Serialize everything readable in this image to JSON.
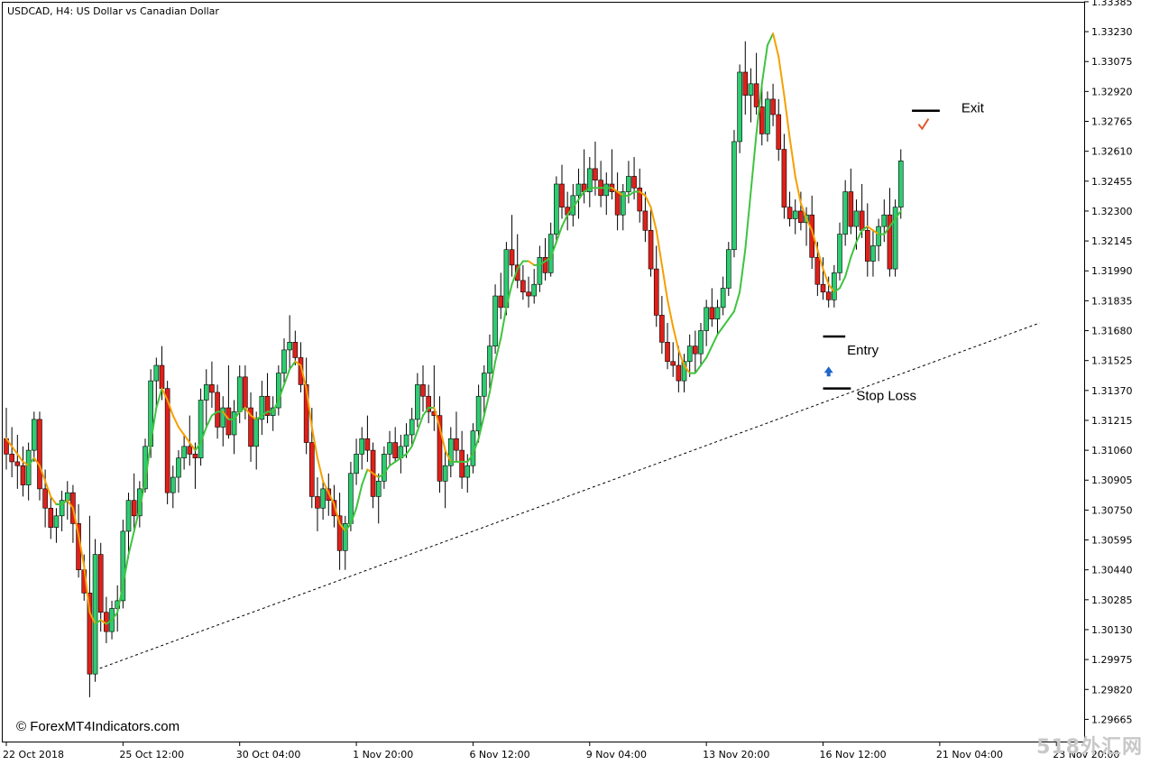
{
  "chart_data": {
    "type": "candlestick",
    "title": "USDCAD, H4:  US Dollar vs Canadian Dollar",
    "watermark_credit": "© ForexMT4Indicators.com",
    "corner_watermark": "518外汇网",
    "grid": false,
    "colors": {
      "bull": "#2ecc71",
      "bear": "#e0201a",
      "line_up": "#3ec43e",
      "line_down": "#f5a000",
      "text": "#000000",
      "trendline": "#000000"
    },
    "y_axis": {
      "ylim": [
        1.2955,
        1.3338
      ],
      "tick_labels": [
        "1.33385",
        "1.33230",
        "1.33075",
        "1.32920",
        "1.32765",
        "1.32610",
        "1.32455",
        "1.32300",
        "1.32145",
        "1.31990",
        "1.31835",
        "1.31680",
        "1.31525",
        "1.31370",
        "1.31215",
        "1.31060",
        "1.30905",
        "1.30750",
        "1.30595",
        "1.30440",
        "1.30285",
        "1.30130",
        "1.29975",
        "1.29820",
        "1.29665"
      ]
    },
    "x_axis": {
      "tick_labels": [
        "22 Oct 2018",
        "25 Oct 12:00",
        "30 Oct 04:00",
        "1 Nov 20:00",
        "6 Nov 12:00",
        "9 Nov 04:00",
        "13 Nov 20:00",
        "16 Nov 12:00",
        "21 Nov 04:00",
        "23 Nov 20:00"
      ],
      "tick_bars": [
        0,
        21,
        42,
        63,
        84,
        105,
        126,
        147,
        168,
        189
      ]
    },
    "bars": [
      [
        1.3112,
        1.3128,
        1.3096,
        1.3104
      ],
      [
        1.3104,
        1.3118,
        1.3092,
        1.31
      ],
      [
        1.31,
        1.3114,
        1.3086,
        1.3098
      ],
      [
        1.3098,
        1.3108,
        1.3082,
        1.3088
      ],
      [
        1.3088,
        1.311,
        1.308,
        1.3106
      ],
      [
        1.3106,
        1.3126,
        1.31,
        1.3122
      ],
      [
        1.3122,
        1.3126,
        1.308,
        1.3086
      ],
      [
        1.3086,
        1.3096,
        1.3066,
        1.3076
      ],
      [
        1.3076,
        1.3082,
        1.306,
        1.3066
      ],
      [
        1.3066,
        1.3076,
        1.3058,
        1.3072
      ],
      [
        1.3072,
        1.3085,
        1.3064,
        1.308
      ],
      [
        1.308,
        1.309,
        1.307,
        1.3084
      ],
      [
        1.3084,
        1.3088,
        1.3058,
        1.3068
      ],
      [
        1.3068,
        1.3078,
        1.304,
        1.3044
      ],
      [
        1.3044,
        1.3052,
        1.3028,
        1.3032
      ],
      [
        1.3032,
        1.3072,
        1.2978,
        1.299
      ],
      [
        1.299,
        1.306,
        1.2986,
        1.3052
      ],
      [
        1.3052,
        1.3058,
        1.3012,
        1.3022
      ],
      [
        1.3022,
        1.303,
        1.3006,
        1.3012
      ],
      [
        1.3012,
        1.3028,
        1.3008,
        1.3024
      ],
      [
        1.3024,
        1.3036,
        1.3012,
        1.3028
      ],
      [
        1.3028,
        1.307,
        1.3024,
        1.3064
      ],
      [
        1.3064,
        1.3084,
        1.305,
        1.308
      ],
      [
        1.308,
        1.3094,
        1.3064,
        1.3072
      ],
      [
        1.3072,
        1.309,
        1.3066,
        1.3086
      ],
      [
        1.3086,
        1.3112,
        1.3084,
        1.3108
      ],
      [
        1.3108,
        1.3148,
        1.3102,
        1.3142
      ],
      [
        1.3142,
        1.3154,
        1.3128,
        1.315
      ],
      [
        1.315,
        1.316,
        1.3132,
        1.3138
      ],
      [
        1.3138,
        1.3142,
        1.3078,
        1.3084
      ],
      [
        1.3084,
        1.3098,
        1.3076,
        1.3092
      ],
      [
        1.3092,
        1.3106,
        1.3084,
        1.3102
      ],
      [
        1.3102,
        1.3114,
        1.3096,
        1.3108
      ],
      [
        1.3108,
        1.3124,
        1.3098,
        1.3104
      ],
      [
        1.3104,
        1.311,
        1.3086,
        1.3102
      ],
      [
        1.3102,
        1.3138,
        1.3098,
        1.3132
      ],
      [
        1.3132,
        1.3148,
        1.3118,
        1.314
      ],
      [
        1.314,
        1.3152,
        1.3128,
        1.3136
      ],
      [
        1.3136,
        1.314,
        1.3112,
        1.3118
      ],
      [
        1.3118,
        1.3134,
        1.3108,
        1.3128
      ],
      [
        1.3128,
        1.315,
        1.3112,
        1.3114
      ],
      [
        1.3114,
        1.3132,
        1.3104,
        1.3126
      ],
      [
        1.3126,
        1.315,
        1.312,
        1.3144
      ],
      [
        1.3144,
        1.315,
        1.3122,
        1.3128
      ],
      [
        1.3128,
        1.3136,
        1.31,
        1.3108
      ],
      [
        1.3108,
        1.3126,
        1.3096,
        1.3122
      ],
      [
        1.3122,
        1.3142,
        1.3114,
        1.3134
      ],
      [
        1.3134,
        1.3146,
        1.312,
        1.3124
      ],
      [
        1.3124,
        1.3134,
        1.3116,
        1.3128
      ],
      [
        1.3128,
        1.315,
        1.3124,
        1.3146
      ],
      [
        1.3146,
        1.3164,
        1.314,
        1.3158
      ],
      [
        1.3158,
        1.3176,
        1.3148,
        1.3162
      ],
      [
        1.3162,
        1.3168,
        1.315,
        1.3154
      ],
      [
        1.3154,
        1.3162,
        1.3136,
        1.314
      ],
      [
        1.314,
        1.3154,
        1.3104,
        1.311
      ],
      [
        1.311,
        1.3128,
        1.3076,
        1.3082
      ],
      [
        1.3082,
        1.3092,
        1.3064,
        1.3076
      ],
      [
        1.3076,
        1.309,
        1.307,
        1.3086
      ],
      [
        1.3086,
        1.3094,
        1.3072,
        1.308
      ],
      [
        1.308,
        1.3088,
        1.3066,
        1.3072
      ],
      [
        1.3072,
        1.3084,
        1.3044,
        1.3054
      ],
      [
        1.3054,
        1.3072,
        1.3044,
        1.3068
      ],
      [
        1.3068,
        1.31,
        1.3064,
        1.3094
      ],
      [
        1.3094,
        1.3112,
        1.3088,
        1.3104
      ],
      [
        1.3104,
        1.3118,
        1.3096,
        1.3112
      ],
      [
        1.3112,
        1.3124,
        1.31,
        1.3106
      ],
      [
        1.3106,
        1.311,
        1.3076,
        1.3082
      ],
      [
        1.3082,
        1.3094,
        1.3068,
        1.309
      ],
      [
        1.309,
        1.3108,
        1.3086,
        1.3104
      ],
      [
        1.3104,
        1.3116,
        1.3098,
        1.311
      ],
      [
        1.311,
        1.3118,
        1.31,
        1.3102
      ],
      [
        1.3102,
        1.3114,
        1.3094,
        1.3108
      ],
      [
        1.3108,
        1.312,
        1.3102,
        1.3114
      ],
      [
        1.3114,
        1.3128,
        1.3108,
        1.3122
      ],
      [
        1.3122,
        1.3146,
        1.3118,
        1.314
      ],
      [
        1.314,
        1.315,
        1.3126,
        1.3134
      ],
      [
        1.3134,
        1.314,
        1.312,
        1.3126
      ],
      [
        1.3126,
        1.315,
        1.3116,
        1.3124
      ],
      [
        1.3124,
        1.3134,
        1.3084,
        1.309
      ],
      [
        1.309,
        1.3106,
        1.3076,
        1.3098
      ],
      [
        1.3098,
        1.3118,
        1.3092,
        1.3112
      ],
      [
        1.3112,
        1.3126,
        1.31,
        1.3106
      ],
      [
        1.3106,
        1.3116,
        1.3086,
        1.3092
      ],
      [
        1.3092,
        1.3104,
        1.3084,
        1.3098
      ],
      [
        1.3098,
        1.312,
        1.3094,
        1.3116
      ],
      [
        1.3116,
        1.314,
        1.311,
        1.3134
      ],
      [
        1.3134,
        1.315,
        1.3124,
        1.3146
      ],
      [
        1.3146,
        1.3166,
        1.3138,
        1.316
      ],
      [
        1.316,
        1.3192,
        1.3156,
        1.3186
      ],
      [
        1.3186,
        1.3198,
        1.3174,
        1.318
      ],
      [
        1.318,
        1.3214,
        1.3176,
        1.321
      ],
      [
        1.321,
        1.3228,
        1.3196,
        1.3202
      ],
      [
        1.3202,
        1.3218,
        1.319,
        1.3194
      ],
      [
        1.3194,
        1.3202,
        1.3184,
        1.3188
      ],
      [
        1.3188,
        1.3196,
        1.318,
        1.3186
      ],
      [
        1.3186,
        1.32,
        1.3182,
        1.3192
      ],
      [
        1.3192,
        1.3212,
        1.3188,
        1.3206
      ],
      [
        1.3206,
        1.3216,
        1.3194,
        1.3198
      ],
      [
        1.3198,
        1.3224,
        1.3196,
        1.3218
      ],
      [
        1.3218,
        1.3248,
        1.3214,
        1.3244
      ],
      [
        1.3244,
        1.3254,
        1.3226,
        1.3232
      ],
      [
        1.3232,
        1.324,
        1.322,
        1.3228
      ],
      [
        1.3228,
        1.3244,
        1.3222,
        1.3238
      ],
      [
        1.3238,
        1.3252,
        1.3226,
        1.3244
      ],
      [
        1.3244,
        1.3262,
        1.3234,
        1.324
      ],
      [
        1.324,
        1.3258,
        1.3232,
        1.3252
      ],
      [
        1.3252,
        1.3266,
        1.3238,
        1.3246
      ],
      [
        1.3246,
        1.3256,
        1.3232,
        1.3238
      ],
      [
        1.3238,
        1.325,
        1.3228,
        1.3244
      ],
      [
        1.3244,
        1.3262,
        1.3236,
        1.324
      ],
      [
        1.324,
        1.325,
        1.322,
        1.3228
      ],
      [
        1.3228,
        1.3244,
        1.322,
        1.324
      ],
      [
        1.324,
        1.3256,
        1.3234,
        1.3248
      ],
      [
        1.3248,
        1.3258,
        1.3236,
        1.3242
      ],
      [
        1.3242,
        1.3252,
        1.3224,
        1.323
      ],
      [
        1.323,
        1.324,
        1.3214,
        1.322
      ],
      [
        1.322,
        1.3232,
        1.3196,
        1.32
      ],
      [
        1.32,
        1.3212,
        1.317,
        1.3176
      ],
      [
        1.3176,
        1.3186,
        1.3156,
        1.3162
      ],
      [
        1.3162,
        1.3172,
        1.3148,
        1.3152
      ],
      [
        1.3152,
        1.3162,
        1.3144,
        1.315
      ],
      [
        1.315,
        1.316,
        1.3136,
        1.3142
      ],
      [
        1.3142,
        1.3156,
        1.3136,
        1.3152
      ],
      [
        1.3152,
        1.3166,
        1.3144,
        1.316
      ],
      [
        1.316,
        1.3168,
        1.3146,
        1.3156
      ],
      [
        1.3156,
        1.3172,
        1.315,
        1.3168
      ],
      [
        1.3168,
        1.3184,
        1.316,
        1.318
      ],
      [
        1.318,
        1.319,
        1.317,
        1.3174
      ],
      [
        1.3174,
        1.3184,
        1.3166,
        1.318
      ],
      [
        1.318,
        1.3196,
        1.3176,
        1.319
      ],
      [
        1.319,
        1.3214,
        1.3186,
        1.321
      ],
      [
        1.321,
        1.3272,
        1.3206,
        1.3266
      ],
      [
        1.3266,
        1.3306,
        1.326,
        1.3302
      ],
      [
        1.3302,
        1.3318,
        1.328,
        1.329
      ],
      [
        1.329,
        1.3304,
        1.3276,
        1.3296
      ],
      [
        1.3296,
        1.3312,
        1.328,
        1.3284
      ],
      [
        1.3284,
        1.3296,
        1.3264,
        1.327
      ],
      [
        1.327,
        1.3292,
        1.3266,
        1.3288
      ],
      [
        1.3288,
        1.3296,
        1.3274,
        1.328
      ],
      [
        1.328,
        1.3288,
        1.3256,
        1.3262
      ],
      [
        1.3262,
        1.327,
        1.3226,
        1.3232
      ],
      [
        1.3232,
        1.324,
        1.3222,
        1.3226
      ],
      [
        1.3226,
        1.3236,
        1.3218,
        1.323
      ],
      [
        1.323,
        1.324,
        1.322,
        1.3224
      ],
      [
        1.3224,
        1.3232,
        1.3212,
        1.3228
      ],
      [
        1.3228,
        1.3238,
        1.32,
        1.3206
      ],
      [
        1.3206,
        1.3214,
        1.3186,
        1.3192
      ],
      [
        1.3192,
        1.3206,
        1.3184,
        1.3188
      ],
      [
        1.3188,
        1.3196,
        1.318,
        1.3184
      ],
      [
        1.3184,
        1.3202,
        1.318,
        1.3198
      ],
      [
        1.3198,
        1.3224,
        1.3194,
        1.3218
      ],
      [
        1.3218,
        1.3246,
        1.3212,
        1.324
      ],
      [
        1.324,
        1.3252,
        1.3218,
        1.3222
      ],
      [
        1.3222,
        1.3236,
        1.321,
        1.323
      ],
      [
        1.323,
        1.3244,
        1.3216,
        1.322
      ],
      [
        1.322,
        1.3234,
        1.3196,
        1.3204
      ],
      [
        1.3204,
        1.322,
        1.3196,
        1.3212
      ],
      [
        1.3212,
        1.3226,
        1.3204,
        1.3222
      ],
      [
        1.3222,
        1.3236,
        1.3214,
        1.3228
      ],
      [
        1.3228,
        1.3242,
        1.3196,
        1.32
      ],
      [
        1.32,
        1.3236,
        1.3196,
        1.3232
      ],
      [
        1.3232,
        1.3262,
        1.3226,
        1.3256
      ]
    ],
    "fast_line": [
      1.3112,
      1.3108,
      1.3104,
      1.31,
      1.3098,
      1.3102,
      1.3098,
      1.309,
      1.3082,
      1.3078,
      1.3078,
      1.308,
      1.3076,
      1.3062,
      1.3046,
      1.3022,
      1.3016,
      1.3018,
      1.3016,
      1.3018,
      1.3022,
      1.3036,
      1.3052,
      1.3064,
      1.3076,
      1.309,
      1.311,
      1.3128,
      1.3138,
      1.3132,
      1.3124,
      1.3118,
      1.3114,
      1.311,
      1.3106,
      1.311,
      1.3118,
      1.3124,
      1.3126,
      1.3126,
      1.3122,
      1.3122,
      1.3126,
      1.3128,
      1.3124,
      1.3122,
      1.3124,
      1.3126,
      1.3126,
      1.3132,
      1.314,
      1.3148,
      1.3152,
      1.315,
      1.3138,
      1.3118,
      1.3102,
      1.309,
      1.3084,
      1.3078,
      1.3068,
      1.3064,
      1.3068,
      1.3076,
      1.3088,
      1.3096,
      1.3094,
      1.3092,
      1.3094,
      1.3098,
      1.31,
      1.3102,
      1.3104,
      1.3108,
      1.3116,
      1.3124,
      1.3128,
      1.3128,
      1.3118,
      1.3106,
      1.31,
      1.31,
      1.31,
      1.31,
      1.3104,
      1.3112,
      1.3124,
      1.3136,
      1.3152,
      1.3164,
      1.318,
      1.3192,
      1.32,
      1.3204,
      1.3204,
      1.3202,
      1.3202,
      1.3204,
      1.3206,
      1.3214,
      1.3222,
      1.3228,
      1.3232,
      1.3236,
      1.324,
      1.3242,
      1.3242,
      1.3242,
      1.3242,
      1.3242,
      1.324,
      1.3238,
      1.3238,
      1.324,
      1.324,
      1.3238,
      1.3232,
      1.322,
      1.3202,
      1.3184,
      1.317,
      1.3158,
      1.315,
      1.3146,
      1.3146,
      1.315,
      1.3154,
      1.316,
      1.3166,
      1.317,
      1.3174,
      1.3178,
      1.3188,
      1.321,
      1.324,
      1.327,
      1.3296,
      1.3316,
      1.3322,
      1.331,
      1.329,
      1.3268,
      1.3248,
      1.3234,
      1.3226,
      1.322,
      1.321,
      1.32,
      1.3192,
      1.3188,
      1.319,
      1.3196,
      1.3206,
      1.3214,
      1.322,
      1.3222,
      1.322,
      1.3218,
      1.3218,
      1.3222,
      1.3226,
      1.323
    ],
    "trendline": {
      "from": [
        15,
        1.2991
      ],
      "to": [
        186,
        1.3172
      ]
    },
    "annotations": [
      {
        "text": "Entry",
        "bar": 148,
        "price": 1.3165,
        "level_from": 147,
        "level_to": 151
      },
      {
        "text": "Stop Loss",
        "bar": 148,
        "price": 1.3138,
        "level_from": 147,
        "level_to": 152
      },
      {
        "text": "Exit",
        "bar": 164,
        "price": 1.3282,
        "level_from": 163,
        "level_to": 168
      }
    ],
    "signal_arrow_bar": 148,
    "signal_arrow_price": 1.3148,
    "exit_check_bar": 165,
    "exit_check_price": 1.3275
  }
}
